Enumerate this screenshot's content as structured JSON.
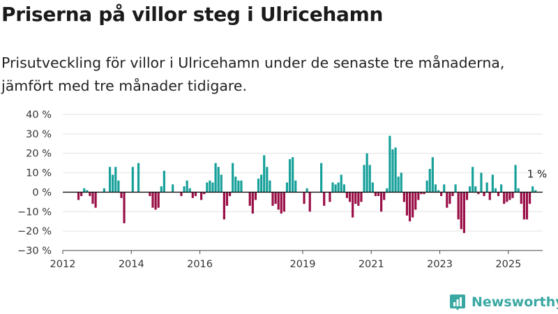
{
  "header": {
    "title": "Priserna på villor steg i Ulricehamn",
    "subtitle": "Prisutveckling för villor i Ulricehamn under de senaste tre månaderna, jämfört med tre månader tidigare."
  },
  "brand": {
    "name": "Newsworthy",
    "logo_icon": "newsworthy-logo-icon"
  },
  "colors": {
    "positive": "#17a09a",
    "negative": "#990f47",
    "grid": "#e2e2e2",
    "axis": "#333333",
    "brand": "#3aa8a2"
  },
  "chart_data": {
    "type": "bar",
    "x_unit": "month",
    "x_ticks": [
      "2012",
      "2014",
      "2016",
      "2019",
      "2021",
      "2023",
      "2025"
    ],
    "xlim": [
      "2012-01",
      "2025-12"
    ],
    "ylim": [
      -30,
      40
    ],
    "y_ticks": [
      "40 %",
      "30 %",
      "20 %",
      "10 %",
      "0 %",
      "−10 %",
      "−20 %",
      "−30 %"
    ],
    "grid": true,
    "last_label": "1 %",
    "series": [
      {
        "values": [
          {
            "month": "2012-06",
            "value": -4
          },
          {
            "month": "2012-07",
            "value": -2
          },
          {
            "month": "2012-08",
            "value": 2
          },
          {
            "month": "2012-09",
            "value": 1
          },
          {
            "month": "2012-10",
            "value": -2
          },
          {
            "month": "2012-11",
            "value": -6
          },
          {
            "month": "2012-12",
            "value": -8
          },
          {
            "month": "2013-03",
            "value": 2
          },
          {
            "month": "2013-05",
            "value": 13
          },
          {
            "month": "2013-06",
            "value": 9
          },
          {
            "month": "2013-07",
            "value": 13
          },
          {
            "month": "2013-08",
            "value": 6
          },
          {
            "month": "2013-09",
            "value": -3
          },
          {
            "month": "2013-10",
            "value": -16
          },
          {
            "month": "2014-01",
            "value": 13
          },
          {
            "month": "2014-03",
            "value": 15
          },
          {
            "month": "2014-07",
            "value": -2
          },
          {
            "month": "2014-08",
            "value": -8
          },
          {
            "month": "2014-09",
            "value": -9
          },
          {
            "month": "2014-10",
            "value": -8
          },
          {
            "month": "2014-11",
            "value": 3
          },
          {
            "month": "2014-12",
            "value": 11
          },
          {
            "month": "2015-03",
            "value": 4
          },
          {
            "month": "2015-06",
            "value": -2
          },
          {
            "month": "2015-07",
            "value": 3
          },
          {
            "month": "2015-08",
            "value": 6
          },
          {
            "month": "2015-09",
            "value": 2
          },
          {
            "month": "2015-10",
            "value": -3
          },
          {
            "month": "2015-11",
            "value": -2
          },
          {
            "month": "2016-01",
            "value": -4
          },
          {
            "month": "2016-02",
            "value": -1
          },
          {
            "month": "2016-03",
            "value": 5
          },
          {
            "month": "2016-04",
            "value": 6
          },
          {
            "month": "2016-05",
            "value": 5
          },
          {
            "month": "2016-06",
            "value": 15
          },
          {
            "month": "2016-07",
            "value": 13
          },
          {
            "month": "2016-08",
            "value": 9
          },
          {
            "month": "2016-09",
            "value": -14
          },
          {
            "month": "2016-10",
            "value": -7
          },
          {
            "month": "2016-11",
            "value": -2
          },
          {
            "month": "2016-12",
            "value": 15
          },
          {
            "month": "2017-01",
            "value": 8
          },
          {
            "month": "2017-02",
            "value": 6
          },
          {
            "month": "2017-03",
            "value": 6
          },
          {
            "month": "2017-06",
            "value": -7
          },
          {
            "month": "2017-07",
            "value": -11
          },
          {
            "month": "2017-08",
            "value": -4
          },
          {
            "month": "2017-09",
            "value": 7
          },
          {
            "month": "2017-10",
            "value": 9
          },
          {
            "month": "2017-11",
            "value": 19
          },
          {
            "month": "2017-12",
            "value": 13
          },
          {
            "month": "2018-01",
            "value": 6
          },
          {
            "month": "2018-02",
            "value": -7
          },
          {
            "month": "2018-03",
            "value": -6
          },
          {
            "month": "2018-04",
            "value": -9
          },
          {
            "month": "2018-05",
            "value": -11
          },
          {
            "month": "2018-06",
            "value": -10
          },
          {
            "month": "2018-07",
            "value": 5
          },
          {
            "month": "2018-08",
            "value": 17
          },
          {
            "month": "2018-09",
            "value": 18
          },
          {
            "month": "2018-10",
            "value": 6
          },
          {
            "month": "2019-01",
            "value": -6
          },
          {
            "month": "2019-02",
            "value": 2
          },
          {
            "month": "2019-03",
            "value": -10
          },
          {
            "month": "2019-07",
            "value": 15
          },
          {
            "month": "2019-08",
            "value": -7
          },
          {
            "month": "2019-10",
            "value": -5
          },
          {
            "month": "2019-11",
            "value": 5
          },
          {
            "month": "2019-12",
            "value": 4
          },
          {
            "month": "2020-01",
            "value": 5
          },
          {
            "month": "2020-02",
            "value": 9
          },
          {
            "month": "2020-03",
            "value": 4
          },
          {
            "month": "2020-04",
            "value": -3
          },
          {
            "month": "2020-05",
            "value": -5
          },
          {
            "month": "2020-06",
            "value": -13
          },
          {
            "month": "2020-07",
            "value": -6
          },
          {
            "month": "2020-08",
            "value": -7
          },
          {
            "month": "2020-09",
            "value": -5
          },
          {
            "month": "2020-10",
            "value": 14
          },
          {
            "month": "2020-11",
            "value": 20
          },
          {
            "month": "2020-12",
            "value": 14
          },
          {
            "month": "2021-01",
            "value": 5
          },
          {
            "month": "2021-02",
            "value": -2
          },
          {
            "month": "2021-03",
            "value": -2
          },
          {
            "month": "2021-04",
            "value": -10
          },
          {
            "month": "2021-05",
            "value": -4
          },
          {
            "month": "2021-06",
            "value": 2
          },
          {
            "month": "2021-07",
            "value": 29
          },
          {
            "month": "2021-08",
            "value": 22
          },
          {
            "month": "2021-09",
            "value": 23
          },
          {
            "month": "2021-10",
            "value": 8
          },
          {
            "month": "2021-11",
            "value": 10
          },
          {
            "month": "2021-12",
            "value": -5
          },
          {
            "month": "2022-01",
            "value": -12
          },
          {
            "month": "2022-02",
            "value": -15
          },
          {
            "month": "2022-03",
            "value": -13
          },
          {
            "month": "2022-04",
            "value": -9
          },
          {
            "month": "2022-05",
            "value": -4
          },
          {
            "month": "2022-06",
            "value": -1
          },
          {
            "month": "2022-07",
            "value": -1
          },
          {
            "month": "2022-08",
            "value": 6
          },
          {
            "month": "2022-09",
            "value": 12
          },
          {
            "month": "2022-10",
            "value": 18
          },
          {
            "month": "2022-11",
            "value": 4
          },
          {
            "month": "2022-12",
            "value": 1
          },
          {
            "month": "2023-01",
            "value": -2
          },
          {
            "month": "2023-02",
            "value": 4
          },
          {
            "month": "2023-03",
            "value": -8
          },
          {
            "month": "2023-04",
            "value": -6
          },
          {
            "month": "2023-05",
            "value": -2
          },
          {
            "month": "2023-06",
            "value": 4
          },
          {
            "month": "2023-07",
            "value": -14
          },
          {
            "month": "2023-08",
            "value": -19
          },
          {
            "month": "2023-09",
            "value": -21
          },
          {
            "month": "2023-10",
            "value": -4
          },
          {
            "month": "2023-11",
            "value": 3
          },
          {
            "month": "2023-12",
            "value": 13
          },
          {
            "month": "2024-01",
            "value": 3
          },
          {
            "month": "2024-02",
            "value": -1
          },
          {
            "month": "2024-03",
            "value": 10
          },
          {
            "month": "2024-04",
            "value": -2
          },
          {
            "month": "2024-05",
            "value": 5
          },
          {
            "month": "2024-06",
            "value": -4
          },
          {
            "month": "2024-07",
            "value": 9
          },
          {
            "month": "2024-08",
            "value": 2
          },
          {
            "month": "2024-09",
            "value": -2
          },
          {
            "month": "2024-10",
            "value": 4
          },
          {
            "month": "2024-11",
            "value": -6
          },
          {
            "month": "2024-12",
            "value": -5
          },
          {
            "month": "2025-01",
            "value": -4
          },
          {
            "month": "2025-02",
            "value": -3
          },
          {
            "month": "2025-03",
            "value": 14
          },
          {
            "month": "2025-04",
            "value": 2
          },
          {
            "month": "2025-05",
            "value": -6
          },
          {
            "month": "2025-06",
            "value": -14
          },
          {
            "month": "2025-07",
            "value": -14
          },
          {
            "month": "2025-08",
            "value": -6
          },
          {
            "month": "2025-09",
            "value": 3
          },
          {
            "month": "2025-10",
            "value": 1
          }
        ]
      }
    ]
  }
}
